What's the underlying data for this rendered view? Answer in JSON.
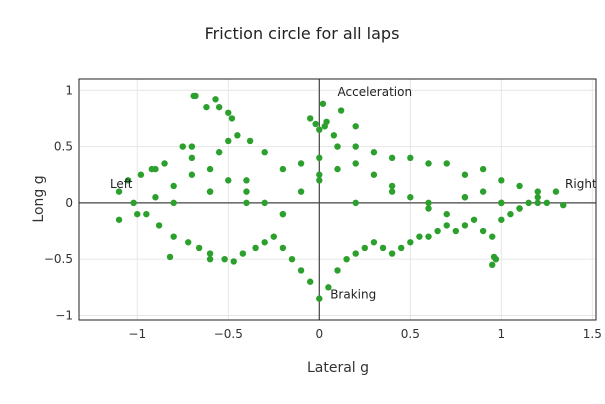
{
  "chart_data": {
    "type": "scatter",
    "title": "Friction circle for all laps",
    "xlabel": "Lateral g",
    "ylabel": "Long g",
    "xlim": [
      -1.32,
      1.52
    ],
    "ylim": [
      -1.04,
      1.1
    ],
    "x_ticks": [
      -1,
      -0.5,
      0,
      0.5,
      1,
      1.5
    ],
    "x_tick_labels": [
      "−1",
      "−0.5",
      "0",
      "0.5",
      "1",
      "1.5"
    ],
    "y_ticks": [
      -1,
      -0.5,
      0,
      0.5,
      1
    ],
    "y_tick_labels": [
      "−1",
      "−0.5",
      "0",
      "0.5",
      "1"
    ],
    "grid": true,
    "marker_color": "#2ca02c",
    "annotations": [
      {
        "text": "Acceleration",
        "x": 0.1,
        "y": 0.95
      },
      {
        "text": "Braking",
        "x": 0.06,
        "y": -0.85
      },
      {
        "text": "Left",
        "x": -1.15,
        "y": 0.13
      },
      {
        "text": "Right",
        "x": 1.35,
        "y": 0.13
      }
    ],
    "series": [
      {
        "x": [
          -0.68,
          -0.57,
          -0.5,
          -0.62,
          -0.45,
          -0.75,
          -0.38,
          -0.55,
          -0.7,
          -0.85,
          -0.92,
          -0.98,
          -1.05,
          -1.1,
          -1.02,
          -0.95,
          -0.88,
          -0.8,
          -0.72,
          -0.66,
          -0.6,
          -0.52,
          -0.47,
          -0.42,
          -0.35,
          -0.3,
          -0.25,
          -0.2,
          -0.15,
          -0.1,
          -0.05,
          0.0,
          0.05,
          0.1,
          0.15,
          0.2,
          0.25,
          0.3,
          0.35,
          0.4,
          0.45,
          0.5,
          0.55,
          0.6,
          0.65,
          0.7,
          0.75,
          0.8,
          0.85,
          0.9,
          0.95,
          1.0,
          1.05,
          1.1,
          1.15,
          1.2,
          1.25,
          1.3,
          1.34,
          -0.6,
          -0.4,
          -0.2,
          0.0,
          0.2,
          0.4,
          0.6,
          0.8,
          1.0,
          1.2,
          -0.9,
          -0.7,
          -0.5,
          -0.3,
          -0.1,
          0.1,
          0.3,
          0.5,
          0.7,
          0.9,
          1.1,
          -0.8,
          -0.6,
          -0.4,
          -0.2,
          0.0,
          0.2,
          0.4,
          0.6,
          0.8,
          1.0,
          -1.1,
          -1.0,
          -0.9,
          -0.8,
          -0.7,
          -0.6,
          -0.5,
          -0.4,
          -0.3,
          -0.2,
          -0.1,
          0.0,
          0.1,
          0.2,
          0.3,
          0.4,
          0.5,
          0.6,
          0.7,
          0.8,
          0.9,
          1.0,
          1.1,
          1.2,
          -0.05,
          0.02,
          0.04,
          -0.02,
          0.0,
          0.03,
          -0.69,
          -0.55,
          -0.48,
          0.12,
          0.08,
          0.2,
          0.95,
          0.97,
          0.96,
          -0.6,
          -0.82
        ],
        "y": [
          0.95,
          0.92,
          0.8,
          0.85,
          0.6,
          0.5,
          0.55,
          0.45,
          0.4,
          0.35,
          0.3,
          0.25,
          0.2,
          0.1,
          0.0,
          -0.1,
          -0.2,
          -0.3,
          -0.35,
          -0.4,
          -0.45,
          -0.5,
          -0.52,
          -0.45,
          -0.4,
          -0.35,
          -0.3,
          -0.4,
          -0.5,
          -0.6,
          -0.7,
          -0.85,
          -0.75,
          -0.6,
          -0.5,
          -0.45,
          -0.4,
          -0.35,
          -0.4,
          -0.45,
          -0.4,
          -0.35,
          -0.3,
          -0.3,
          -0.25,
          -0.2,
          -0.25,
          -0.2,
          -0.15,
          -0.25,
          -0.3,
          -0.15,
          -0.1,
          -0.05,
          0.0,
          0.05,
          0.0,
          0.1,
          -0.02,
          0.1,
          0.2,
          0.3,
          0.4,
          0.5,
          0.4,
          0.35,
          0.25,
          0.2,
          0.1,
          0.3,
          0.5,
          0.55,
          0.45,
          0.35,
          0.5,
          0.45,
          0.4,
          0.35,
          0.3,
          0.15,
          0.0,
          0.1,
          0.0,
          -0.1,
          0.2,
          0.0,
          0.1,
          0.0,
          0.05,
          0.0,
          -0.15,
          -0.1,
          0.05,
          0.15,
          0.25,
          0.3,
          0.2,
          0.1,
          0.0,
          -0.1,
          0.1,
          0.25,
          0.3,
          0.35,
          0.25,
          0.15,
          0.05,
          -0.05,
          -0.1,
          0.05,
          0.1,
          0.0,
          -0.05,
          0.0,
          0.75,
          0.88,
          0.72,
          0.7,
          0.65,
          0.68,
          0.95,
          0.85,
          0.75,
          0.82,
          0.6,
          0.68,
          -0.55,
          -0.5,
          -0.48,
          -0.5,
          -0.48
        ]
      }
    ]
  }
}
